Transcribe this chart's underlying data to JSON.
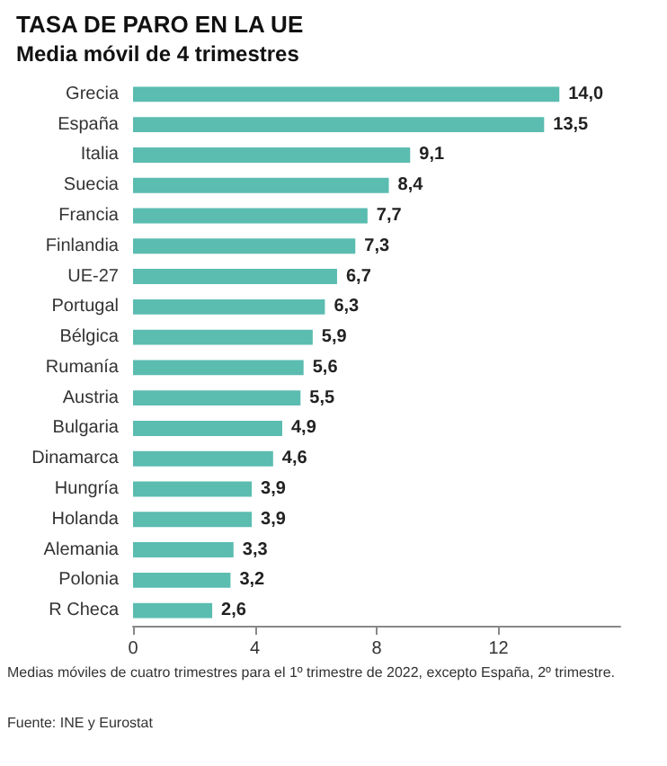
{
  "chart_data": {
    "type": "bar",
    "orientation": "horizontal",
    "title": "TASA DE PARO EN LA UE",
    "subtitle": "Media móvil de 4 trimestres",
    "categories": [
      "Grecia",
      "España",
      "Italia",
      "Suecia",
      "Francia",
      "Finlandia",
      "UE-27",
      "Portugal",
      "Bélgica",
      "Rumanía",
      "Austria",
      "Bulgaria",
      "Dinamarca",
      "Hungría",
      "Holanda",
      "Alemania",
      "Polonia",
      "R Checa"
    ],
    "values": [
      14.0,
      13.5,
      9.1,
      8.4,
      7.7,
      7.3,
      6.7,
      6.3,
      5.9,
      5.6,
      5.5,
      4.9,
      4.6,
      3.9,
      3.9,
      3.3,
      3.2,
      2.6
    ],
    "value_labels": [
      "14,0",
      "13,5",
      "9,1",
      "8,4",
      "7,7",
      "7,3",
      "6,7",
      "6,3",
      "5,9",
      "5,6",
      "5,5",
      "4,9",
      "4,6",
      "3,9",
      "3,9",
      "3,3",
      "3,2",
      "2,6"
    ],
    "color": "#5bbcb0",
    "xlim": [
      0,
      16
    ],
    "xticks": [
      0,
      4,
      8,
      12
    ],
    "annotations": [
      "Medias móviles de cuatro trimestres para el 1º trimestre de 2022, excepto España, 2º trimestre.",
      "Fuente: INE y Eurostat"
    ]
  }
}
